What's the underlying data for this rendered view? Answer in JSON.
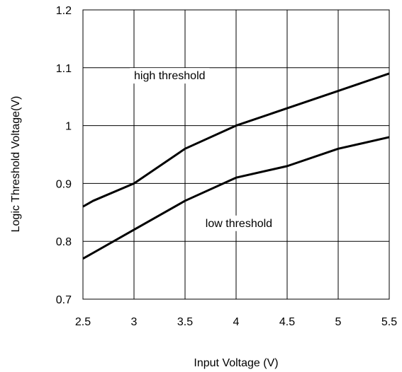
{
  "chart_data": {
    "type": "line",
    "title": "",
    "xlabel": "Input Voltage (V)",
    "ylabel": "Logic Threshold Voltage(V)",
    "xlim": [
      2.5,
      5.5
    ],
    "ylim": [
      0.7,
      1.2
    ],
    "x_ticks": [
      "2.5",
      "3",
      "3.5",
      "4",
      "4.5",
      "5",
      "5.5"
    ],
    "y_ticks": [
      "0.7",
      "0.8",
      "0.9",
      "1",
      "1.1",
      "1.2"
    ],
    "grid": true,
    "series": [
      {
        "name": "high threshold",
        "x": [
          2.5,
          2.6,
          3.0,
          3.5,
          4.0,
          4.5,
          5.0,
          5.5
        ],
        "y": [
          0.86,
          0.87,
          0.9,
          0.96,
          1.0,
          1.03,
          1.06,
          1.09
        ]
      },
      {
        "name": "low threshold",
        "x": [
          2.5,
          3.0,
          3.5,
          4.0,
          4.5,
          5.0,
          5.5
        ],
        "y": [
          0.77,
          0.82,
          0.87,
          0.91,
          0.93,
          0.96,
          0.98
        ]
      }
    ],
    "annotations": [
      {
        "text": "high threshold",
        "x": 3.0,
        "y": 1.08
      },
      {
        "text": "low threshold",
        "x": 3.7,
        "y": 0.825
      }
    ],
    "line_color": "#000000"
  }
}
